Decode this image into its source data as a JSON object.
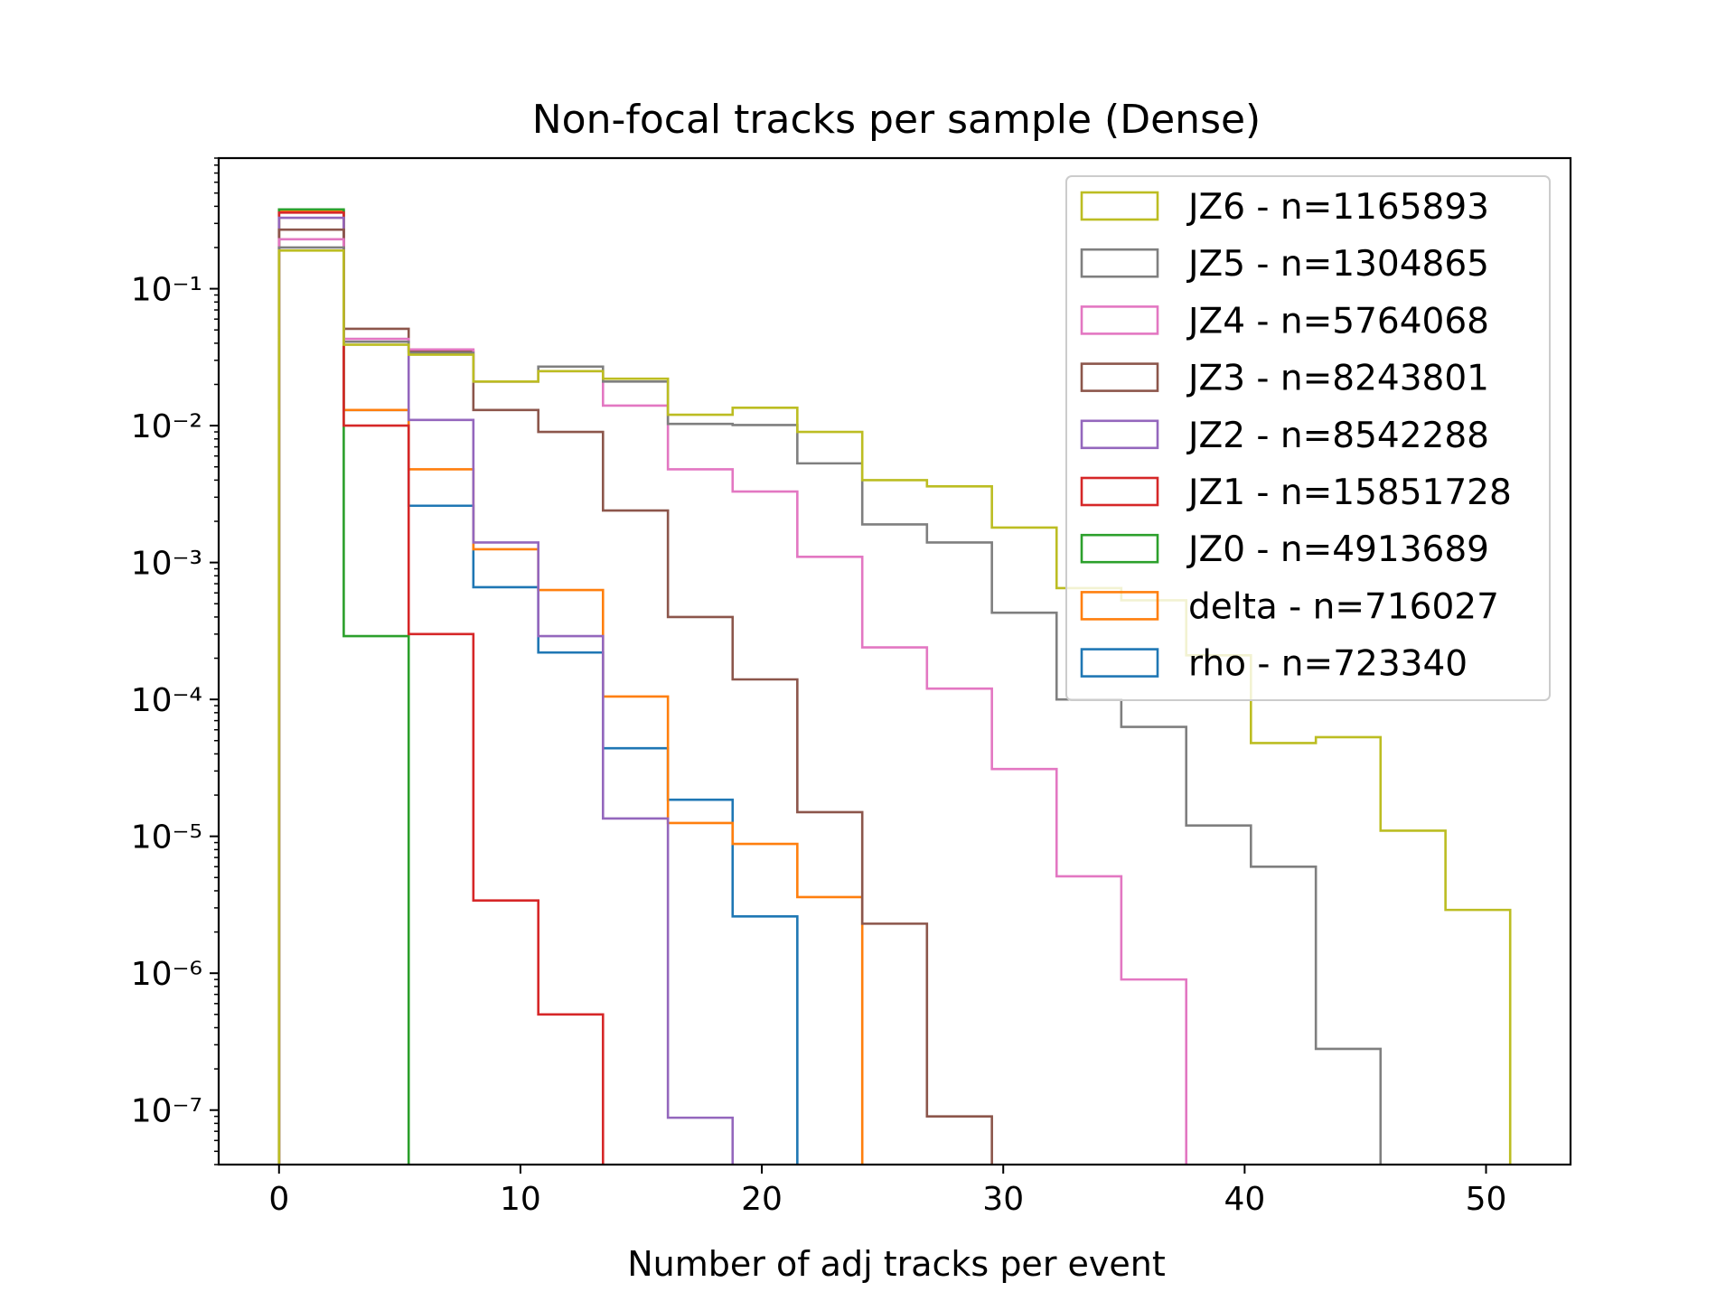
{
  "chart_data": {
    "type": "histogram-step",
    "title": "Non-focal tracks per sample (Dense)",
    "xlabel": "Number of adj tracks per event",
    "ylabel": "",
    "x_scale": "linear",
    "y_scale": "log",
    "xlim": [
      -2.5,
      53.5
    ],
    "ylim": [
      4e-08,
      0.9
    ],
    "x_ticks": [
      0,
      10,
      20,
      30,
      40,
      50
    ],
    "y_ticks": [
      -7,
      -6,
      -5,
      -4,
      -3,
      -2,
      -1
    ],
    "y_tick_labels": [
      "10⁻⁷",
      "10⁻⁶",
      "10⁻⁵",
      "10⁻⁴",
      "10⁻³",
      "10⁻²",
      "10⁻¹"
    ],
    "bin_edges": [
      0,
      2.68,
      5.37,
      8.05,
      10.74,
      13.42,
      16.11,
      18.79,
      21.47,
      24.16,
      26.84,
      29.53,
      32.21,
      34.89,
      37.58,
      40.26,
      42.95,
      45.63,
      48.32,
      51.0
    ],
    "legend_position": "upper right",
    "grid": false,
    "series": [
      {
        "name": "JZ6 - n=1165893",
        "color": "#bcbd22",
        "values": [
          0.19,
          0.039,
          0.033,
          0.021,
          0.025,
          0.022,
          0.012,
          0.0135,
          0.009,
          0.004,
          0.0036,
          0.0018,
          0.00065,
          0.00053,
          0.00021,
          4.8e-05,
          5.3e-05,
          1.1e-05,
          2.9e-06
        ]
      },
      {
        "name": "JZ5 - n=1304865",
        "color": "#7f7f7f",
        "values": [
          0.2,
          0.041,
          0.034,
          0.021,
          0.027,
          0.021,
          0.0103,
          0.0101,
          0.0053,
          0.0019,
          0.0014,
          0.00043,
          0.0001,
          6.3e-05,
          1.2e-05,
          6e-06,
          2.8e-07,
          0,
          0
        ]
      },
      {
        "name": "JZ4 - n=5764068",
        "color": "#e377c2",
        "values": [
          0.23,
          0.043,
          0.036,
          0.021,
          0.025,
          0.014,
          0.0048,
          0.0033,
          0.0011,
          0.00024,
          0.00012,
          3.1e-05,
          5.1e-06,
          9e-07,
          0,
          0,
          0,
          0,
          0
        ]
      },
      {
        "name": "JZ3 - n=8243801",
        "color": "#8c564b",
        "values": [
          0.27,
          0.051,
          0.035,
          0.013,
          0.009,
          0.0024,
          0.0004,
          0.00014,
          1.5e-05,
          2.3e-06,
          9e-08,
          0,
          0,
          0,
          0,
          0,
          0,
          0,
          0
        ]
      },
      {
        "name": "JZ2 - n=8542288",
        "color": "#9467bd",
        "values": [
          0.33,
          0.043,
          0.011,
          0.0014,
          0.00029,
          1.35e-05,
          8.8e-08,
          0,
          0,
          0,
          0,
          0,
          0,
          0,
          0,
          0,
          0,
          0,
          0
        ]
      },
      {
        "name": "JZ1 - n=15851728",
        "color": "#d62728",
        "values": [
          0.36,
          0.01,
          0.0003,
          3.4e-06,
          5e-07,
          0,
          0,
          0,
          0,
          0,
          0,
          0,
          0,
          0,
          0,
          0,
          0,
          0,
          0
        ]
      },
      {
        "name": "JZ0 - n=4913689",
        "color": "#2ca02c",
        "values": [
          0.38,
          0.00029,
          0,
          0,
          0,
          0,
          0,
          0,
          0,
          0,
          0,
          0,
          0,
          0,
          0,
          0,
          0,
          0,
          0
        ]
      },
      {
        "name": "delta - n=716027",
        "color": "#ff7f0e",
        "values": [
          0.37,
          0.013,
          0.0048,
          0.00125,
          0.00063,
          0.000105,
          1.25e-05,
          8.8e-06,
          3.6e-06,
          0,
          0,
          0,
          0,
          0,
          0,
          0,
          0,
          0,
          0
        ]
      },
      {
        "name": "rho - n=723340",
        "color": "#1f77b4",
        "values": [
          0.37,
          0.013,
          0.0026,
          0.00066,
          0.00022,
          4.4e-05,
          1.85e-05,
          2.6e-06,
          0,
          0,
          0,
          0,
          0,
          0,
          0,
          0,
          0,
          0,
          0
        ]
      }
    ]
  }
}
